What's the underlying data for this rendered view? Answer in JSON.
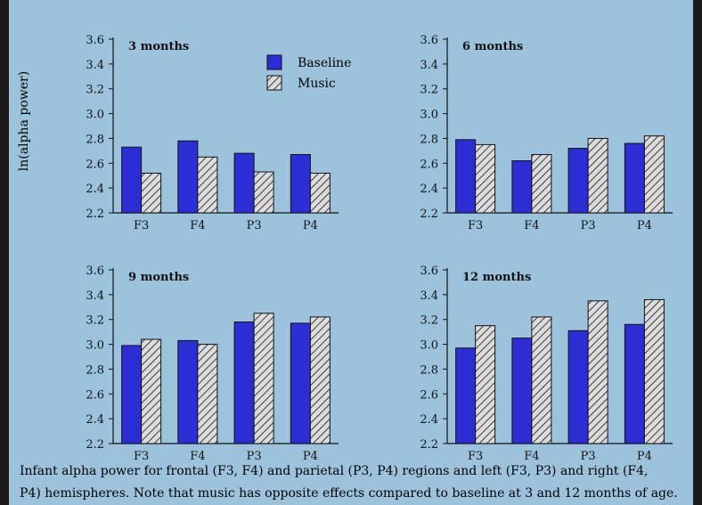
{
  "colors": {
    "background": "#9cc3db",
    "baseline_fill": "#2d2dd6",
    "music_fill": "#dcdcdc",
    "ink": "#111111",
    "edge_frame": "#1b1b1b"
  },
  "ylabel": "ln(alpha power)",
  "legend": {
    "baseline": "Baseline",
    "music": "Music"
  },
  "caption": {
    "line1": "Infant alpha power for frontal (F3, F4) and parietal (P3, P4) regions and left (F3, P3) and right (F4,",
    "line2": "P4) hemispheres. Note that music has opposite effects compared to baseline at 3 and 12 months of age."
  },
  "chart_data": [
    {
      "type": "bar",
      "title": "3 months",
      "categories": [
        "F3",
        "F4",
        "P3",
        "P4"
      ],
      "ylim": [
        2.2,
        3.6
      ],
      "yticks": [
        "2.2",
        "2.4",
        "2.6",
        "2.8",
        "3.0",
        "3.2",
        "3.4",
        "3.6"
      ],
      "series": [
        {
          "name": "Baseline",
          "values": [
            2.73,
            2.78,
            2.68,
            2.67
          ]
        },
        {
          "name": "Music",
          "values": [
            2.52,
            2.65,
            2.53,
            2.52
          ]
        }
      ]
    },
    {
      "type": "bar",
      "title": "6 months",
      "categories": [
        "F3",
        "F4",
        "P3",
        "P4"
      ],
      "ylim": [
        2.2,
        3.6
      ],
      "yticks": [
        "2.2",
        "2.4",
        "2.6",
        "2.8",
        "3.0",
        "3.2",
        "3.4",
        "3.6"
      ],
      "series": [
        {
          "name": "Baseline",
          "values": [
            2.79,
            2.62,
            2.72,
            2.76
          ]
        },
        {
          "name": "Music",
          "values": [
            2.75,
            2.67,
            2.8,
            2.82
          ]
        }
      ]
    },
    {
      "type": "bar",
      "title": "9 months",
      "categories": [
        "F3",
        "F4",
        "P3",
        "P4"
      ],
      "ylim": [
        2.2,
        3.6
      ],
      "yticks": [
        "2.2",
        "2.4",
        "2.6",
        "2.8",
        "3.0",
        "3.2",
        "3.4",
        "3.6"
      ],
      "series": [
        {
          "name": "Baseline",
          "values": [
            2.99,
            3.03,
            3.18,
            3.17
          ]
        },
        {
          "name": "Music",
          "values": [
            3.04,
            3.0,
            3.25,
            3.22
          ]
        }
      ]
    },
    {
      "type": "bar",
      "title": "12 months",
      "categories": [
        "F3",
        "F4",
        "P3",
        "P4"
      ],
      "ylim": [
        2.2,
        3.6
      ],
      "yticks": [
        "2.2",
        "2.4",
        "2.6",
        "2.8",
        "3.0",
        "3.2",
        "3.4",
        "3.6"
      ],
      "series": [
        {
          "name": "Baseline",
          "values": [
            2.97,
            3.05,
            3.11,
            3.16
          ]
        },
        {
          "name": "Music",
          "values": [
            3.15,
            3.22,
            3.35,
            3.36
          ]
        }
      ]
    }
  ]
}
